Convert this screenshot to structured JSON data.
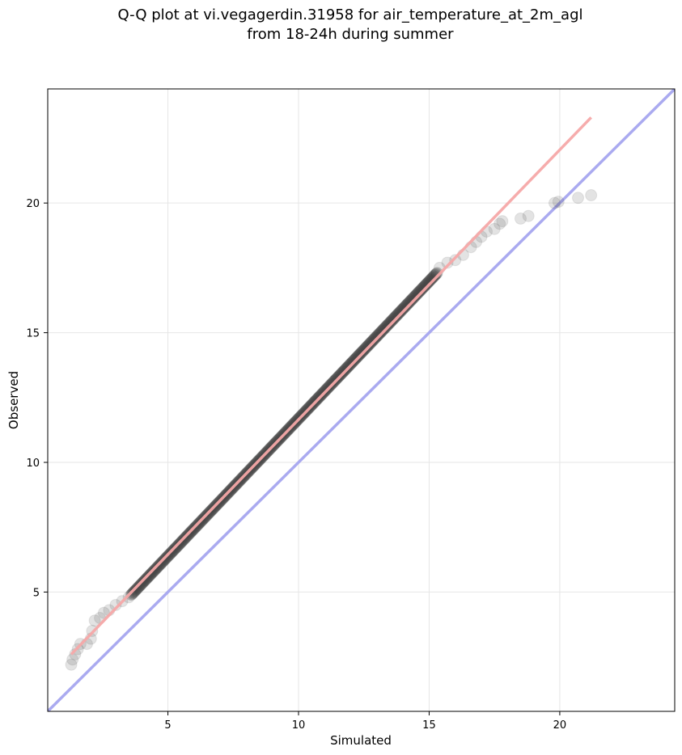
{
  "chart_data": {
    "type": "scatter",
    "title_lines": [
      "Q-Q plot at vi.vegagerdin.31958 for air_temperature_at_2m_agl",
      "from 18-24h during summer"
    ],
    "xlabel": "Simulated",
    "ylabel": "Observed",
    "xlim": [
      0.4,
      24.4
    ],
    "ylim": [
      0.4,
      24.4
    ],
    "xticks": [
      5,
      10,
      15,
      20
    ],
    "yticks": [
      5,
      10,
      15,
      20
    ],
    "grid": true,
    "identity_line": {
      "color": "#aaaaf0",
      "from": [
        0.4,
        0.4
      ],
      "to": [
        24.4,
        24.4
      ]
    },
    "fit_line": {
      "color": "#f5a8a8",
      "from": [
        1.3,
        2.6
      ],
      "to": [
        21.2,
        23.3
      ]
    },
    "point_color": "#3c3c3c",
    "quantiles_sparse": [
      [
        1.3,
        2.2
      ],
      [
        1.35,
        2.4
      ],
      [
        1.45,
        2.6
      ],
      [
        1.55,
        2.8
      ],
      [
        1.65,
        3.0
      ],
      [
        1.9,
        3.0
      ],
      [
        2.05,
        3.2
      ],
      [
        2.1,
        3.5
      ],
      [
        2.2,
        3.9
      ],
      [
        2.4,
        4.0
      ],
      [
        2.55,
        4.2
      ],
      [
        2.75,
        4.3
      ],
      [
        3.0,
        4.5
      ],
      [
        3.25,
        4.65
      ],
      [
        3.5,
        4.8
      ],
      [
        15.4,
        17.5
      ],
      [
        15.7,
        17.7
      ],
      [
        16.0,
        17.8
      ],
      [
        16.3,
        18.0
      ],
      [
        16.6,
        18.3
      ],
      [
        16.8,
        18.5
      ],
      [
        17.0,
        18.7
      ],
      [
        17.2,
        18.9
      ],
      [
        17.5,
        19.0
      ],
      [
        17.7,
        19.2
      ],
      [
        17.8,
        19.3
      ],
      [
        18.5,
        19.4
      ],
      [
        18.8,
        19.5
      ],
      [
        19.8,
        20.0
      ],
      [
        19.95,
        20.05
      ],
      [
        20.7,
        20.2
      ],
      [
        21.2,
        20.3
      ]
    ],
    "quantiles_dense": {
      "x_start": 3.6,
      "x_end": 15.3,
      "y_start": 4.9,
      "y_end": 17.3,
      "count": 320
    }
  }
}
